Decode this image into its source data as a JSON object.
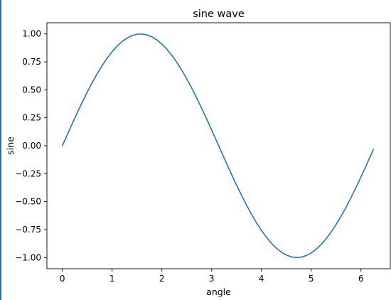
{
  "chart_data": {
    "type": "line",
    "title": "sine wave",
    "xlabel": "angle",
    "ylabel": "sine",
    "xlim": [
      -0.31,
      6.59
    ],
    "ylim": [
      -1.1,
      1.1
    ],
    "xticks": [
      0,
      1,
      2,
      3,
      4,
      5,
      6
    ],
    "yticks": [
      1.0,
      0.75,
      0.5,
      0.25,
      0.0,
      -0.25,
      -0.5,
      -0.75,
      -1.0
    ],
    "ytick_labels": [
      "1.00",
      "0.75",
      "0.50",
      "0.25",
      "0.00",
      "−0.25",
      "−0.50",
      "−0.75",
      "−1.00"
    ],
    "grid": false,
    "series": [
      {
        "color": "#1f77b4",
        "function": "sin",
        "x": [
          0,
          0.1,
          0.2,
          0.3,
          0.4,
          0.5,
          0.6,
          0.7,
          0.8,
          0.9,
          1.0,
          1.1,
          1.2,
          1.3,
          1.4,
          1.5,
          1.6,
          1.7,
          1.8,
          1.9,
          2.0,
          2.1,
          2.2,
          2.3,
          2.4,
          2.5,
          2.6,
          2.7,
          2.8,
          2.9,
          3.0,
          3.1,
          3.2,
          3.3,
          3.4,
          3.5,
          3.6,
          3.7,
          3.8,
          3.9,
          4.0,
          4.1,
          4.2,
          4.3,
          4.4,
          4.5,
          4.6,
          4.7,
          4.8,
          4.9,
          5.0,
          5.1,
          5.2,
          5.3,
          5.4,
          5.5,
          5.6,
          5.7,
          5.8,
          5.9,
          6.0,
          6.1,
          6.2,
          6.25
        ],
        "y": [
          0.0,
          0.0998,
          0.1987,
          0.2955,
          0.3894,
          0.4794,
          0.5646,
          0.6442,
          0.7174,
          0.7833,
          0.8415,
          0.8912,
          0.932,
          0.9636,
          0.9854,
          0.9975,
          0.9996,
          0.9917,
          0.9738,
          0.9463,
          0.9093,
          0.8632,
          0.8085,
          0.7457,
          0.6755,
          0.5985,
          0.5155,
          0.4274,
          0.335,
          0.2392,
          0.1411,
          0.0416,
          -0.0584,
          -0.1577,
          -0.2555,
          -0.3508,
          -0.4425,
          -0.5298,
          -0.6119,
          -0.6878,
          -0.7568,
          -0.8183,
          -0.8716,
          -0.9162,
          -0.9516,
          -0.9775,
          -0.9937,
          -0.9999,
          -0.9962,
          -0.9825,
          -0.9589,
          -0.9258,
          -0.8835,
          -0.8323,
          -0.7728,
          -0.7055,
          -0.6313,
          -0.5507,
          -0.4646,
          -0.3739,
          -0.2794,
          -0.1822,
          -0.0831,
          -0.0332
        ]
      }
    ]
  }
}
